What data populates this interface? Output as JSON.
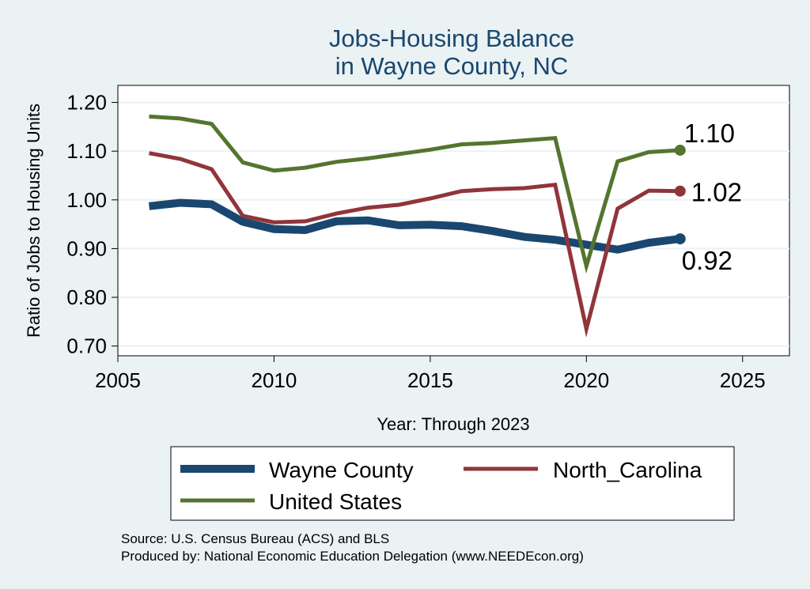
{
  "chart_data": {
    "type": "line",
    "title": [
      "Jobs-Housing Balance",
      "in Wayne County, NC"
    ],
    "xlabel": "Year: Through 2023",
    "ylabel": "Ratio of Jobs to Housing Units",
    "xlim": [
      2005,
      2026.5
    ],
    "ylim": [
      0.68,
      1.235
    ],
    "xticks": [
      2005,
      2010,
      2015,
      2020,
      2025
    ],
    "yticks": [
      0.7,
      0.8,
      0.9,
      1.0,
      1.1,
      1.2
    ],
    "ytick_labels": [
      "0.70",
      "0.80",
      "0.90",
      "1.00",
      "1.10",
      "1.20"
    ],
    "grid": true,
    "x": [
      2006,
      2007,
      2008,
      2009,
      2010,
      2011,
      2012,
      2013,
      2014,
      2015,
      2016,
      2017,
      2018,
      2019,
      2020,
      2021,
      2022,
      2023
    ],
    "series": [
      {
        "name": "Wayne County",
        "color": "#1a476f",
        "width": 10,
        "values": [
          0.987,
          0.994,
          0.991,
          0.955,
          0.94,
          0.938,
          0.956,
          0.958,
          0.948,
          0.949,
          0.946,
          0.936,
          0.924,
          0.918,
          0.908,
          0.898,
          0.912,
          0.92
        ],
        "end_label": "0.92",
        "end_label_position": "below"
      },
      {
        "name": "North_Carolina",
        "color": "#90353b",
        "width": 5,
        "values": [
          1.096,
          1.084,
          1.063,
          0.967,
          0.954,
          0.956,
          0.972,
          0.984,
          0.99,
          1.003,
          1.018,
          1.022,
          1.024,
          1.031,
          0.735,
          0.982,
          1.019,
          1.018
        ],
        "end_label": "1.02",
        "end_label_position": "right"
      },
      {
        "name": "United States",
        "color": "#55752f",
        "width": 5,
        "values": [
          1.171,
          1.167,
          1.156,
          1.077,
          1.06,
          1.066,
          1.078,
          1.085,
          1.094,
          1.103,
          1.114,
          1.117,
          1.122,
          1.127,
          0.864,
          1.079,
          1.098,
          1.102
        ],
        "end_label": "1.10",
        "end_label_position": "above"
      }
    ],
    "legend": {
      "position": "bottom",
      "entries": [
        "Wayne County",
        "North_Carolina",
        "United States"
      ]
    }
  },
  "footer": {
    "source": "Source: U.S. Census Bureau (ACS) and BLS",
    "produced": "Produced by: National Economic Education Delegation (www.NEEDEcon.org)"
  },
  "colors": {
    "background": "#eaf2f3",
    "plot_background": "#ffffff",
    "grid": "#eaf2f3",
    "title": "#1a476f"
  }
}
